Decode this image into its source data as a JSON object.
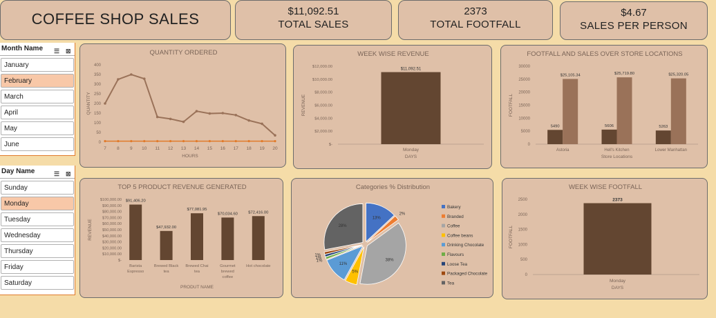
{
  "header": {
    "title": "COFFEE SHOP SALES",
    "kpis": [
      {
        "value": "$11,092.51",
        "label": "TOTAL SALES"
      },
      {
        "value": "2373",
        "label": "TOTAL FOOTFALL"
      },
      {
        "value": "$4.67",
        "label": "SALES PER PERSON"
      }
    ]
  },
  "slicers": {
    "month": {
      "title": "Month Name",
      "items": [
        "January",
        "February",
        "March",
        "April",
        "May",
        "June"
      ],
      "selected": "February"
    },
    "day": {
      "title": "Day Name",
      "items": [
        "Sunday",
        "Monday",
        "Tuesday",
        "Wednesday",
        "Thursday",
        "Friday",
        "Saturday"
      ],
      "selected": "Monday"
    }
  },
  "colors": {
    "brown": "#634631",
    "lightbrown": "#9a7259",
    "panel": "#dfc0a8",
    "bg": "#f5dca8",
    "orange": "#e07a2a"
  },
  "chart_data": [
    {
      "type": "line",
      "title": "QUANTITY ORDERED",
      "xlabel": "HOURS",
      "ylabel": "QUANTITY",
      "x": [
        7,
        8,
        9,
        10,
        11,
        12,
        13,
        14,
        15,
        16,
        17,
        18,
        19,
        20
      ],
      "ylim": [
        0,
        400
      ],
      "yticks": [
        0,
        50,
        100,
        150,
        200,
        250,
        300,
        350,
        400
      ],
      "series": [
        {
          "values": [
            200,
            325,
            350,
            328,
            130,
            120,
            105,
            160,
            148,
            150,
            140,
            112,
            95,
            35
          ],
          "color": "#9a7259"
        },
        {
          "values": [
            5,
            5,
            5,
            5,
            5,
            5,
            5,
            5,
            5,
            5,
            5,
            5,
            5,
            5
          ],
          "color": "#e07a2a"
        }
      ]
    },
    {
      "type": "bar",
      "title": "WEEK WISE REVENUE",
      "xlabel": "DAYS",
      "ylabel": "REVENUE",
      "categories": [
        "Monday"
      ],
      "values": [
        11092.51
      ],
      "data_labels": [
        "$11,092.51"
      ],
      "ylim": [
        0,
        12000
      ],
      "yticks": [
        "$-",
        "$2,000.00",
        "$4,000.00",
        "$6,000.00",
        "$8,000.00",
        "$10,000.00",
        "$12,000.00"
      ]
    },
    {
      "type": "bar",
      "title": "FOOTFALL AND SALES OVER STORE LOCATIONS",
      "xlabel": "Store Locations",
      "ylabel": "FOOTFALL",
      "categories": [
        "Astoria",
        "Hell's Kitchen",
        "Lower Manhattan"
      ],
      "ylim": [
        0,
        30000
      ],
      "yticks": [
        0,
        5000,
        10000,
        15000,
        20000,
        25000,
        30000
      ],
      "series": [
        {
          "values": [
            5490,
            5606,
            5263
          ],
          "labels": [
            "5490",
            "5606",
            "5263"
          ],
          "color": "#634631"
        },
        {
          "values": [
            25105.34,
            25719.8,
            25320.05
          ],
          "labels": [
            "$25,105.34",
            "$25,719.80",
            "$25,320.05"
          ],
          "color": "#9a7259"
        }
      ]
    },
    {
      "type": "bar",
      "title": "TOP 5 PRODUCT REVENUE GENERATED",
      "xlabel": "PRODUT NAME",
      "ylabel": "REVENUE",
      "categories": [
        [
          "Barista",
          "Espresso"
        ],
        [
          "Brewed Black",
          "tea"
        ],
        [
          "Brewed Chai",
          "tea"
        ],
        [
          "Gourmet",
          "brewed",
          "coffee"
        ],
        [
          "Hot chocolate"
        ]
      ],
      "values": [
        91406.2,
        47932.0,
        77081.95,
        70034.6,
        72416.0
      ],
      "data_labels": [
        "$91,406.20",
        "$47,932.00",
        "$77,081.95",
        "$70,034.60",
        "$72,416.00"
      ],
      "ylim": [
        0,
        100000
      ],
      "yticks": [
        "$-",
        "$10,000.00",
        "$20,000.00",
        "$30,000.00",
        "$40,000.00",
        "$50,000.00",
        "$60,000.00",
        "$70,000.00",
        "$80,000.00",
        "$90,000.00",
        "$100,000.00"
      ]
    },
    {
      "type": "pie",
      "title": "Categories % Distribution",
      "slices": [
        {
          "name": "Bakery",
          "value": 13,
          "label": "13%",
          "color": "#4472c4"
        },
        {
          "name": "Branded",
          "value": 2,
          "label": "2%",
          "color": "#ed7d31"
        },
        {
          "name": "Coffee",
          "value": 38,
          "label": "38%",
          "color": "#a5a5a5"
        },
        {
          "name": "Coffee beans",
          "value": 5,
          "label": "5%",
          "color": "#ffc000"
        },
        {
          "name": "Drinking Chocolate",
          "value": 11,
          "label": "11%",
          "color": "#5b9bd5"
        },
        {
          "name": "Flavours",
          "value": 1,
          "label": "1%",
          "color": "#70ad47"
        },
        {
          "name": "Loose Tea",
          "value": 1,
          "label": "1%",
          "color": "#264478"
        },
        {
          "name": "Packaged Chocolate",
          "value": 1,
          "label": "1%",
          "color": "#9e480e"
        },
        {
          "name": "Tea",
          "value": 28,
          "label": "28%",
          "color": "#636363"
        }
      ]
    },
    {
      "type": "bar",
      "title": "WEEK WISE FOOTFALL",
      "xlabel": "DAYS",
      "ylabel": "FOOTFALL",
      "categories": [
        "Monday"
      ],
      "values": [
        2373
      ],
      "data_labels": [
        "2373"
      ],
      "ylim": [
        0,
        2500
      ],
      "yticks": [
        0,
        500,
        1000,
        1500,
        2000,
        2500
      ]
    }
  ]
}
